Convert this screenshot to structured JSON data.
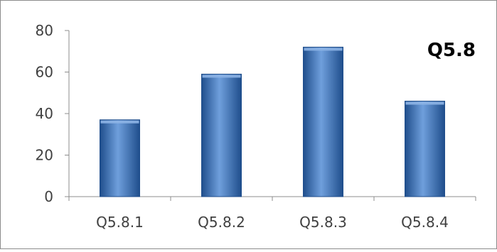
{
  "chart_data": {
    "type": "bar",
    "title": "Q5.8",
    "categories": [
      "Q5.8.1",
      "Q5.8.2",
      "Q5.8.3",
      "Q5.8.4"
    ],
    "values": [
      37,
      59,
      72,
      46
    ],
    "ylim": [
      0,
      80
    ],
    "yticks": [
      "0",
      "20",
      "40",
      "60",
      "80"
    ],
    "xlabel": "",
    "ylabel": "",
    "grid": false,
    "legend": "none",
    "colors": {
      "bar_dark": "#1f4e8c",
      "bar_mid": "#3a72be",
      "bar_light": "#6f9fdc",
      "bar_top": "#8db4e6",
      "axis": "#8c8c8c",
      "text": "#404040",
      "title": "#000000"
    }
  }
}
